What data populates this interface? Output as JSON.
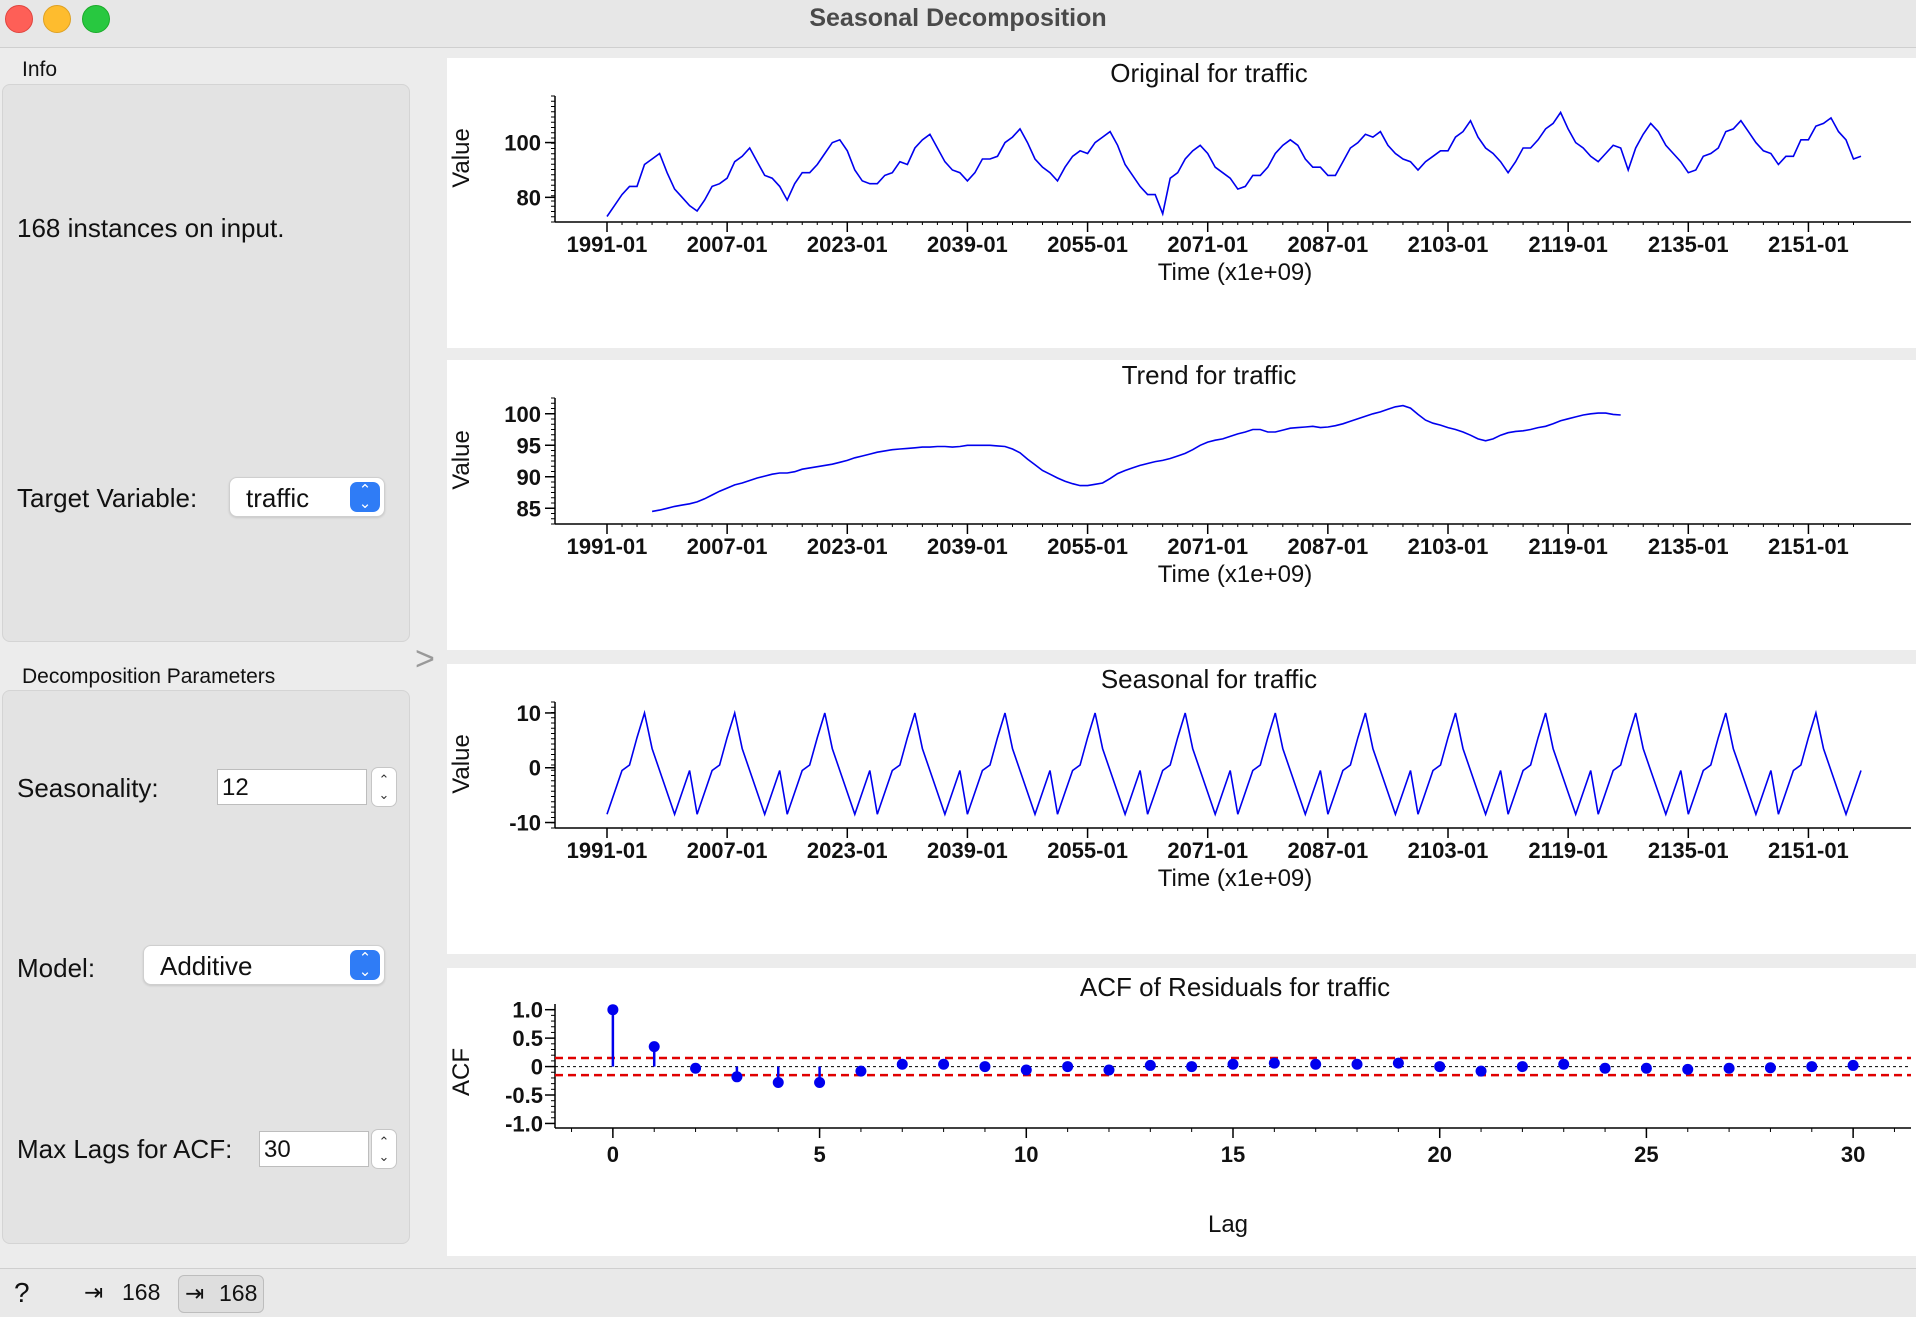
{
  "window": {
    "title": "Seasonal Decomposition"
  },
  "info": {
    "group_title": "Info",
    "text": "168 instances on input."
  },
  "target": {
    "label": "Target Variable:",
    "value": "traffic"
  },
  "params": {
    "group_title": "Decomposition Parameters",
    "seasonality_label": "Seasonality:",
    "seasonality_value": "12",
    "model_label": "Model:",
    "model_value": "Additive",
    "maxlags_label": "Max Lags for ACF:",
    "maxlags_value": "30"
  },
  "status": {
    "input_count": "168",
    "output_count": "168"
  },
  "icons": {
    "help": "question-icon",
    "input": "input-icon",
    "output": "output-icon",
    "splitter": "chevron-right-icon",
    "combo": "up-down-chevron-icon"
  },
  "colors": {
    "series": "#0000ee",
    "confidence": "#e00000",
    "combo_accent": "#2f7cf6"
  },
  "chart_data": [
    {
      "type": "line",
      "title": "Original for traffic",
      "xlabel": "Time (x1e+09)",
      "ylabel": "Value",
      "x_tick_labels": [
        "1991-01",
        "2007-01",
        "2023-01",
        "2039-01",
        "2055-01",
        "2071-01",
        "2087-01",
        "2103-01",
        "2119-01",
        "2135-01",
        "2151-01"
      ],
      "y_ticks": [
        80,
        100
      ],
      "ylim": [
        71,
        117
      ],
      "x_index_range": [
        0,
        167
      ],
      "series": [
        {
          "values": [
            73,
            77,
            81,
            84,
            84,
            92,
            94,
            96,
            89,
            83,
            80,
            77,
            75,
            79,
            84,
            85,
            87,
            93,
            95,
            98,
            93,
            88,
            87,
            84,
            79,
            85,
            89,
            89,
            92,
            96,
            100,
            101,
            97,
            90,
            86,
            85,
            85,
            88,
            89,
            93,
            92,
            98,
            101,
            103,
            98,
            93,
            90,
            89,
            86,
            89,
            94,
            94,
            95,
            100,
            102,
            105,
            100,
            94,
            91,
            89,
            86,
            91,
            95,
            97,
            96,
            100,
            102,
            104,
            99,
            92,
            88,
            84,
            81,
            81,
            74,
            87,
            89,
            94,
            97,
            99,
            96,
            91,
            89,
            87,
            83,
            84,
            88,
            88,
            91,
            96,
            99,
            101,
            99,
            94,
            91,
            91,
            88,
            88,
            93,
            98,
            100,
            103,
            102,
            104,
            99,
            96,
            94,
            93,
            90,
            93,
            95,
            97,
            97,
            102,
            104,
            108,
            102,
            98,
            96,
            93,
            89,
            93,
            98,
            98,
            101,
            105,
            107,
            111,
            105,
            100,
            98,
            95,
            93,
            96,
            99,
            98,
            90,
            98,
            103,
            107,
            104,
            99,
            96,
            93,
            89,
            90,
            95,
            96,
            98,
            104,
            105,
            108,
            104,
            100,
            97,
            96,
            92,
            95,
            95,
            101,
            101,
            106,
            107,
            109,
            104,
            101,
            94,
            95
          ]
        }
      ]
    },
    {
      "type": "line",
      "title": "Trend for traffic",
      "xlabel": "Time (x1e+09)",
      "ylabel": "Value",
      "x_tick_labels": [
        "1991-01",
        "2007-01",
        "2023-01",
        "2039-01",
        "2055-01",
        "2071-01",
        "2087-01",
        "2103-01",
        "2119-01",
        "2135-01",
        "2151-01"
      ],
      "y_ticks": [
        85,
        90,
        95,
        100
      ],
      "ylim": [
        82.5,
        102.5
      ],
      "x_index_range": [
        0,
        167
      ],
      "series": [
        {
          "start_index": 6,
          "values": [
            84.5,
            84.7,
            85.0,
            85.3,
            85.5,
            85.7,
            86.0,
            86.5,
            87.1,
            87.7,
            88.2,
            88.7,
            89.0,
            89.4,
            89.8,
            90.1,
            90.4,
            90.6,
            90.6,
            90.8,
            91.2,
            91.4,
            91.6,
            91.8,
            92.0,
            92.3,
            92.6,
            93.0,
            93.3,
            93.6,
            93.9,
            94.1,
            94.3,
            94.4,
            94.5,
            94.6,
            94.7,
            94.7,
            94.8,
            94.8,
            94.7,
            94.8,
            95.0,
            95.0,
            95.0,
            95.0,
            94.9,
            94.8,
            94.4,
            93.8,
            92.8,
            91.9,
            91.0,
            90.4,
            89.8,
            89.3,
            88.9,
            88.6,
            88.6,
            88.8,
            89.0,
            89.7,
            90.5,
            91.0,
            91.4,
            91.8,
            92.1,
            92.4,
            92.6,
            92.9,
            93.3,
            93.7,
            94.3,
            95.0,
            95.5,
            95.8,
            96.0,
            96.4,
            96.8,
            97.1,
            97.5,
            97.5,
            97.1,
            97.1,
            97.4,
            97.7,
            97.8,
            97.9,
            98.0,
            97.8,
            97.9,
            98.1,
            98.4,
            98.8,
            99.2,
            99.6,
            100.0,
            100.3,
            100.7,
            101.1,
            101.3,
            100.9,
            99.9,
            99.0,
            98.5,
            98.2,
            97.8,
            97.5,
            97.1,
            96.6,
            96.0,
            95.7,
            96.0,
            96.6,
            97.0,
            97.2,
            97.3,
            97.5,
            97.8,
            98.0,
            98.4,
            98.9,
            99.2,
            99.5,
            99.8,
            100.0,
            100.1,
            100.1,
            99.9,
            99.8
          ]
        }
      ]
    },
    {
      "type": "line",
      "title": "Seasonal for traffic",
      "xlabel": "Time (x1e+09)",
      "ylabel": "Value",
      "x_tick_labels": [
        "1991-01",
        "2007-01",
        "2023-01",
        "2039-01",
        "2055-01",
        "2071-01",
        "2087-01",
        "2103-01",
        "2119-01",
        "2135-01",
        "2151-01"
      ],
      "y_ticks": [
        -10,
        0,
        10
      ],
      "ylim": [
        -11,
        12
      ],
      "x_index_range": [
        0,
        167
      ],
      "series": [
        {
          "pattern": [
            -8.5,
            -4.5,
            -0.5,
            0.5,
            5.5,
            10.0,
            3.5,
            -0.5,
            -4.5,
            -8.5,
            -4.5,
            -0.5
          ],
          "count": 168
        }
      ]
    },
    {
      "type": "stem",
      "title": "ACF of Residuals for traffic",
      "xlabel": "Lag",
      "ylabel": "ACF",
      "x_ticks": [
        0,
        5,
        10,
        15,
        20,
        25,
        30
      ],
      "y_tick_labels": [
        "1.0",
        "0.5",
        "0",
        "-0.5",
        "-1.0"
      ],
      "xlim": [
        -1.4,
        31.4
      ],
      "ylim": [
        -1.08,
        1.1
      ],
      "confidence_band": 0.151,
      "lags": [
        0,
        1,
        2,
        3,
        4,
        5,
        6,
        7,
        8,
        9,
        10,
        11,
        12,
        13,
        14,
        15,
        16,
        17,
        18,
        19,
        20,
        21,
        22,
        23,
        24,
        25,
        26,
        27,
        28,
        29,
        30
      ],
      "values": [
        1.0,
        0.35,
        -0.03,
        -0.18,
        -0.28,
        -0.28,
        -0.08,
        0.04,
        0.04,
        0.0,
        -0.06,
        0.0,
        -0.06,
        0.02,
        0.0,
        0.04,
        0.06,
        0.04,
        0.04,
        0.06,
        0.0,
        -0.08,
        0.0,
        0.04,
        -0.03,
        -0.03,
        -0.05,
        -0.03,
        -0.02,
        0.0,
        0.02
      ]
    }
  ]
}
